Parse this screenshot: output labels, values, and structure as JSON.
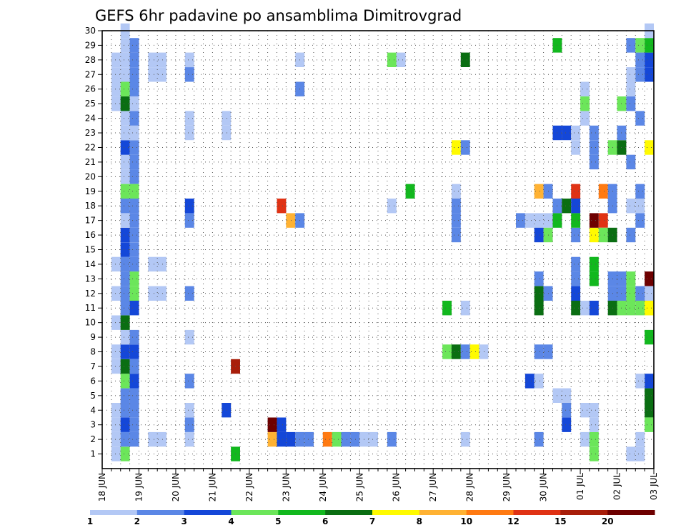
{
  "chart_data": {
    "type": "heatmap",
    "title": "GEFS 6hr padavine po ansamblima Dimitrovgrad",
    "x_tick_labels": [
      "18 JUN",
      "19 JUN",
      "20 JUN",
      "21 JUN",
      "22 JUN",
      "23 JUN",
      "24 JUN",
      "25 JUN",
      "26 JUN",
      "27 JUN",
      "28 JUN",
      "29 JUN",
      "30 JUN",
      "01 JUL",
      "02 JUL",
      "03 JUL"
    ],
    "x_range_days": [
      0,
      15
    ],
    "y_tick_labels": [
      "1",
      "2",
      "3",
      "4",
      "5",
      "6",
      "7",
      "8",
      "9",
      "10",
      "11",
      "12",
      "13",
      "14",
      "15",
      "16",
      "17",
      "18",
      "19",
      "20",
      "21",
      "22",
      "23",
      "24",
      "25",
      "26",
      "27",
      "28",
      "29",
      "30"
    ],
    "y_range": [
      0,
      30
    ],
    "grid": true,
    "legend": {
      "placement": "bottom",
      "labels": [
        "1",
        "2",
        "3",
        "4",
        "5",
        "6",
        "7",
        "8",
        "10",
        "12",
        "15",
        "20"
      ],
      "colors": [
        "#b3c8f5",
        "#5b87e6",
        "#1447d8",
        "#6ce65a",
        "#12b81e",
        "#0a6e12",
        "#fffa00",
        "#ffb233",
        "#ff7a12",
        "#e03214",
        "#a81e0a",
        "#6e0000"
      ]
    },
    "cells": [
      [
        1,
        0.25,
        0.5,
        0
      ],
      [
        2,
        0.25,
        0.5,
        0
      ],
      [
        3,
        0.25,
        0.5,
        0
      ],
      [
        4,
        0.25,
        0.5,
        0
      ],
      [
        7,
        0.25,
        0.5,
        0
      ],
      [
        8,
        0.25,
        0.5,
        0
      ],
      [
        10,
        0.25,
        0.5,
        0
      ],
      [
        12,
        0.25,
        0.5,
        0
      ],
      [
        14,
        0.25,
        0.5,
        0
      ],
      [
        25,
        0.25,
        0.5,
        0
      ],
      [
        26,
        0.25,
        0.5,
        0
      ],
      [
        27,
        0.25,
        0.5,
        0
      ],
      [
        28,
        0.25,
        0.5,
        0
      ],
      [
        1,
        0.5,
        0.75,
        3
      ],
      [
        2,
        0.5,
        0.75,
        1
      ],
      [
        3,
        0.5,
        0.75,
        2
      ],
      [
        4,
        0.5,
        0.75,
        1
      ],
      [
        5,
        0.5,
        0.75,
        1
      ],
      [
        6,
        0.5,
        0.75,
        3
      ],
      [
        7,
        0.5,
        0.75,
        5
      ],
      [
        8,
        0.5,
        0.75,
        2
      ],
      [
        9,
        0.5,
        0.75,
        0
      ],
      [
        10,
        0.5,
        0.75,
        5
      ],
      [
        11,
        0.5,
        0.75,
        1
      ],
      [
        12,
        0.5,
        0.75,
        1
      ],
      [
        13,
        0.5,
        0.75,
        1
      ],
      [
        14,
        0.5,
        0.75,
        1
      ],
      [
        15,
        0.5,
        0.75,
        2
      ],
      [
        16,
        0.5,
        0.75,
        2
      ],
      [
        17,
        0.5,
        0.75,
        0
      ],
      [
        18,
        0.5,
        0.75,
        1
      ],
      [
        19,
        0.5,
        0.75,
        3
      ],
      [
        20,
        0.5,
        0.75,
        0
      ],
      [
        21,
        0.5,
        0.75,
        0
      ],
      [
        22,
        0.5,
        0.75,
        2
      ],
      [
        23,
        0.5,
        0.75,
        0
      ],
      [
        24,
        0.5,
        0.75,
        0
      ],
      [
        25,
        0.5,
        0.75,
        5
      ],
      [
        26,
        0.5,
        0.75,
        3
      ],
      [
        27,
        0.5,
        0.75,
        0
      ],
      [
        28,
        0.5,
        0.75,
        0
      ],
      [
        29,
        0.5,
        0.75,
        0
      ],
      [
        30,
        0.5,
        0.75,
        0
      ],
      [
        2,
        0.75,
        1,
        1
      ],
      [
        3,
        0.75,
        1,
        1
      ],
      [
        4,
        0.75,
        1,
        1
      ],
      [
        5,
        0.75,
        1,
        1
      ],
      [
        6,
        0.75,
        1,
        2
      ],
      [
        7,
        0.75,
        1,
        1
      ],
      [
        8,
        0.75,
        1,
        2
      ],
      [
        9,
        0.75,
        1,
        1
      ],
      [
        11,
        0.75,
        1,
        2
      ],
      [
        12,
        0.75,
        1,
        3
      ],
      [
        13,
        0.75,
        1,
        3
      ],
      [
        14,
        0.75,
        1,
        1
      ],
      [
        15,
        0.75,
        1,
        1
      ],
      [
        16,
        0.75,
        1,
        1
      ],
      [
        17,
        0.75,
        1,
        1
      ],
      [
        18,
        0.75,
        1,
        1
      ],
      [
        19,
        0.75,
        1,
        3
      ],
      [
        20,
        0.75,
        1,
        1
      ],
      [
        21,
        0.75,
        1,
        1
      ],
      [
        22,
        0.75,
        1,
        1
      ],
      [
        23,
        0.75,
        1,
        0
      ],
      [
        24,
        0.75,
        1,
        1
      ],
      [
        25,
        0.75,
        1,
        0
      ],
      [
        26,
        0.75,
        1,
        1
      ],
      [
        27,
        0.75,
        1,
        1
      ],
      [
        28,
        0.75,
        1,
        1
      ],
      [
        29,
        0.75,
        1,
        1
      ],
      [
        2,
        1.25,
        1.75,
        0
      ],
      [
        12,
        1.25,
        1.75,
        0
      ],
      [
        14,
        1.25,
        1.75,
        0
      ],
      [
        27,
        1.25,
        1.75,
        0
      ],
      [
        28,
        1.25,
        1.75,
        0
      ],
      [
        2,
        2.25,
        2.5,
        0
      ],
      [
        6,
        2.25,
        2.5,
        1
      ],
      [
        12,
        2.25,
        2.5,
        1
      ],
      [
        17,
        2.25,
        2.5,
        1
      ],
      [
        18,
        2.25,
        2.5,
        2
      ],
      [
        28,
        2.25,
        2.5,
        0
      ],
      [
        3,
        2.25,
        2.5,
        1
      ],
      [
        4,
        2.25,
        2.5,
        0
      ],
      [
        9,
        2.25,
        2.5,
        0
      ],
      [
        23,
        2.25,
        2.5,
        0
      ],
      [
        24,
        2.25,
        2.5,
        0
      ],
      [
        27,
        2.25,
        2.5,
        1
      ],
      [
        4,
        3.25,
        3.5,
        2
      ],
      [
        23,
        3.25,
        3.5,
        0
      ],
      [
        24,
        3.25,
        3.5,
        0
      ],
      [
        7,
        3.5,
        3.75,
        10
      ],
      [
        1,
        3.5,
        3.75,
        4
      ],
      [
        2,
        4.5,
        4.75,
        7
      ],
      [
        3,
        4.75,
        5,
        2
      ],
      [
        3,
        4.5,
        4.75,
        11
      ],
      [
        2,
        4.75,
        5,
        2
      ],
      [
        2,
        5,
        5.25,
        2
      ],
      [
        2,
        5.25,
        5.5,
        1
      ],
      [
        2,
        5.5,
        5.75,
        1
      ],
      [
        2,
        6,
        6.25,
        8
      ],
      [
        2,
        6.25,
        6.5,
        3
      ],
      [
        18,
        4.75,
        5,
        9
      ],
      [
        17,
        5,
        5.25,
        7
      ],
      [
        17,
        5.25,
        5.5,
        1
      ],
      [
        26,
        5.25,
        5.5,
        1
      ],
      [
        28,
        5.25,
        5.5,
        0
      ],
      [
        2,
        6.5,
        6.75,
        1
      ],
      [
        2,
        6.75,
        7,
        1
      ],
      [
        2,
        7,
        7.25,
        0
      ],
      [
        2,
        7.25,
        7.5,
        0
      ],
      [
        2,
        7.75,
        8,
        1
      ],
      [
        28,
        7.75,
        8,
        3
      ],
      [
        28,
        8,
        8.25,
        0
      ],
      [
        18,
        7.75,
        8,
        0
      ],
      [
        19,
        8.25,
        8.5,
        4
      ],
      [
        8,
        9.25,
        9.5,
        3
      ],
      [
        8,
        9.5,
        9.75,
        5
      ],
      [
        8,
        9.75,
        10,
        1
      ],
      [
        8,
        10,
        10.25,
        6
      ],
      [
        8,
        10.25,
        10.5,
        0
      ],
      [
        11,
        9.25,
        9.5,
        4
      ],
      [
        2,
        9.75,
        10,
        0
      ],
      [
        17,
        9.5,
        9.75,
        1
      ],
      [
        18,
        9.5,
        9.75,
        1
      ],
      [
        16,
        9.5,
        9.75,
        1
      ],
      [
        19,
        9.5,
        9.75,
        0
      ],
      [
        22,
        9.5,
        9.75,
        6
      ],
      [
        22,
        9.75,
        10,
        1
      ],
      [
        11,
        9.75,
        10,
        0
      ],
      [
        28,
        9.75,
        10,
        5
      ],
      [
        6,
        11.5,
        11.75,
        2
      ],
      [
        6,
        11.75,
        12,
        0
      ],
      [
        8,
        11.75,
        12,
        1
      ],
      [
        8,
        12,
        12.25,
        1
      ],
      [
        17,
        11.25,
        11.5,
        1
      ],
      [
        17,
        11.5,
        11.75,
        0
      ],
      [
        17,
        11.75,
        12,
        0
      ],
      [
        17,
        12,
        12.25,
        0
      ],
      [
        16,
        11.75,
        12,
        2
      ],
      [
        16,
        12,
        12.25,
        3
      ],
      [
        2,
        11.75,
        12,
        1
      ],
      [
        12,
        11.75,
        12,
        5
      ],
      [
        11,
        11.75,
        12,
        5
      ],
      [
        13,
        11.75,
        12,
        1
      ],
      [
        12,
        12,
        12.25,
        1
      ],
      [
        19,
        11.75,
        12,
        7
      ],
      [
        19,
        12,
        12.25,
        1
      ],
      [
        17,
        12.25,
        12.5,
        4
      ],
      [
        18,
        12.25,
        12.5,
        1
      ],
      [
        18,
        12.5,
        12.75,
        5
      ],
      [
        23,
        12.25,
        12.5,
        2
      ],
      [
        23,
        12.5,
        12.75,
        2
      ],
      [
        5,
        12.25,
        12.5,
        0
      ],
      [
        5,
        12.5,
        12.75,
        0
      ],
      [
        4,
        12.5,
        12.75,
        1
      ],
      [
        3,
        12.5,
        12.75,
        2
      ],
      [
        29,
        12.25,
        12.5,
        4
      ],
      [
        11,
        12.75,
        13,
        5
      ],
      [
        11,
        13,
        13.25,
        0
      ],
      [
        11,
        13.25,
        13.5,
        2
      ],
      [
        12,
        12.75,
        13,
        2
      ],
      [
        13,
        12.75,
        13,
        1
      ],
      [
        14,
        12.75,
        13,
        1
      ],
      [
        16,
        12.75,
        13,
        1
      ],
      [
        17,
        12.75,
        13,
        4
      ],
      [
        18,
        12.75,
        13,
        2
      ],
      [
        19,
        12.75,
        13,
        9
      ],
      [
        22,
        12.75,
        13,
        0
      ],
      [
        23,
        12.75,
        13,
        0
      ],
      [
        24,
        13,
        13.25,
        0
      ],
      [
        25,
        13,
        13.25,
        3
      ],
      [
        26,
        13,
        13.25,
        0
      ],
      [
        2,
        13,
        13.25,
        0
      ],
      [
        4,
        13,
        13.25,
        0
      ],
      [
        1,
        13.25,
        13.5,
        3
      ],
      [
        2,
        13.25,
        13.5,
        3
      ],
      [
        3,
        13.25,
        13.5,
        0
      ],
      [
        4,
        13.25,
        13.5,
        0
      ],
      [
        13,
        13.25,
        13.5,
        4
      ],
      [
        14,
        13.25,
        13.5,
        4
      ],
      [
        16,
        13.25,
        13.5,
        6
      ],
      [
        17,
        13.25,
        13.5,
        11
      ],
      [
        23,
        13.25,
        13.5,
        1
      ],
      [
        22,
        13.25,
        13.5,
        1
      ],
      [
        21,
        13.25,
        13.5,
        1
      ],
      [
        17,
        13.5,
        13.75,
        9
      ],
      [
        19,
        13.5,
        13.75,
        8
      ],
      [
        16,
        13.5,
        13.75,
        3
      ],
      [
        12,
        13.75,
        14,
        1
      ],
      [
        13,
        13.75,
        14,
        1
      ],
      [
        18,
        13.75,
        14,
        1
      ],
      [
        19,
        13.75,
        14,
        1
      ],
      [
        11,
        13.75,
        14,
        5
      ],
      [
        16,
        13.75,
        14,
        5
      ],
      [
        22,
        13.75,
        14,
        3
      ],
      [
        13,
        14,
        14.25,
        1
      ],
      [
        22,
        14,
        14.25,
        5
      ],
      [
        23,
        14,
        14.25,
        1
      ],
      [
        25,
        14,
        14.25,
        3
      ],
      [
        11,
        14,
        14.25,
        3
      ],
      [
        12,
        14,
        14.25,
        1
      ],
      [
        13,
        14.25,
        14.5,
        3
      ],
      [
        11,
        14.25,
        14.5,
        3
      ],
      [
        12,
        14.25,
        14.5,
        3
      ],
      [
        21,
        14.25,
        14.5,
        1
      ],
      [
        18,
        14.25,
        14.5,
        0
      ],
      [
        16,
        14.25,
        14.5,
        1
      ],
      [
        24,
        14.5,
        14.75,
        1
      ],
      [
        25,
        14.25,
        14.5,
        1
      ],
      [
        26,
        14.25,
        14.5,
        0
      ],
      [
        27,
        14.25,
        14.5,
        0
      ],
      [
        29,
        14.25,
        14.5,
        1
      ],
      [
        17,
        14.5,
        14.75,
        1
      ],
      [
        18,
        14.5,
        14.75,
        0
      ],
      [
        19,
        14.5,
        14.75,
        1
      ],
      [
        11,
        14.5,
        14.75,
        3
      ],
      [
        11,
        14.75,
        15,
        6
      ],
      [
        12,
        14.75,
        15,
        0
      ],
      [
        13,
        14.75,
        15,
        11
      ],
      [
        27,
        14.75,
        15,
        2
      ],
      [
        28,
        14.75,
        15,
        2
      ],
      [
        29,
        14.75,
        15,
        4
      ],
      [
        30,
        14.75,
        15,
        0
      ],
      [
        22,
        14.75,
        15,
        6
      ],
      [
        4,
        14.75,
        15,
        5
      ],
      [
        5,
        14.75,
        15,
        5
      ],
      [
        6,
        14.75,
        15,
        2
      ],
      [
        9,
        14.75,
        15,
        4
      ],
      [
        1,
        14.25,
        14.5,
        0
      ],
      [
        2,
        14.5,
        14.75,
        0
      ],
      [
        3,
        14.75,
        15,
        3
      ],
      [
        1,
        14.5,
        14.75,
        0
      ],
      [
        6,
        14.5,
        14.75,
        0
      ],
      [
        11,
        14.75,
        15,
        6
      ],
      [
        29,
        14.5,
        14.75,
        3
      ],
      [
        27,
        14.5,
        14.75,
        1
      ],
      [
        28,
        14.5,
        14.75,
        1
      ],
      [
        12,
        14.5,
        14.75,
        1
      ]
    ]
  }
}
